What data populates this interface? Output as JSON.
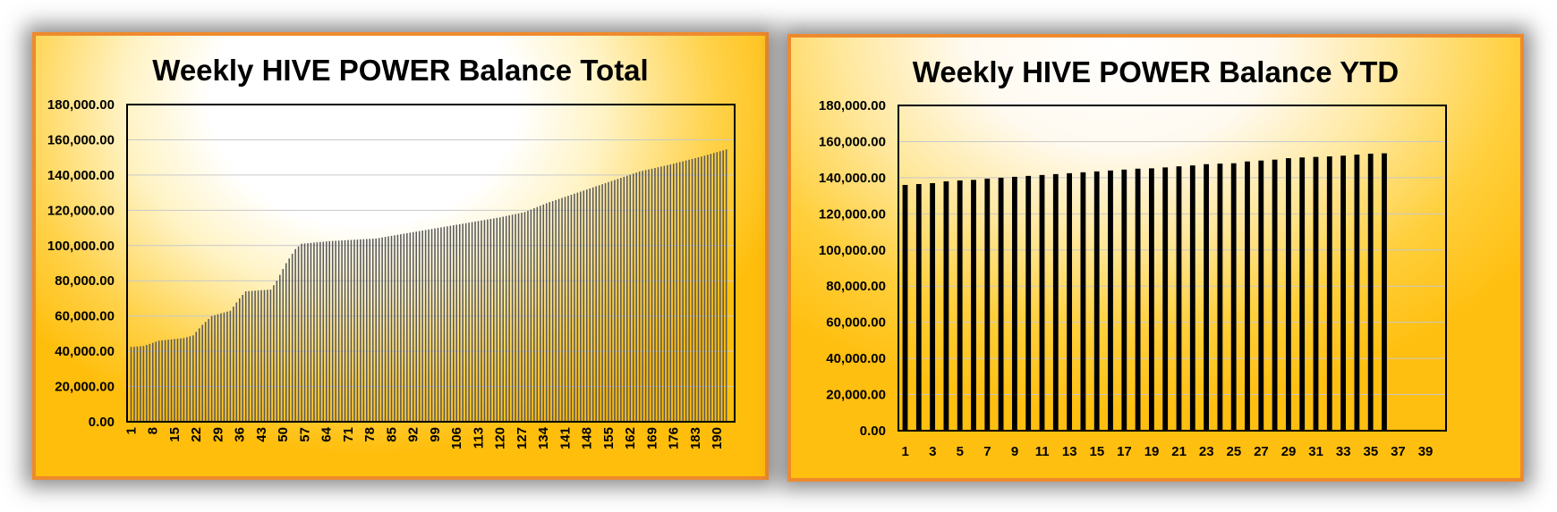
{
  "colors": {
    "border": "#ef8a2c",
    "bar_left": "#6b6b6b",
    "bar_right": "#000000",
    "grid": "#c8c8c8",
    "background_edge": "#ffbe0c"
  },
  "chart_data": [
    {
      "type": "bar",
      "title": "Weekly HIVE POWER Balance Total",
      "xlabel": "",
      "ylabel": "",
      "ylim": [
        0,
        180000
      ],
      "y_ticks": [
        "0.00",
        "20,000.00",
        "40,000.00",
        "60,000.00",
        "80,000.00",
        "100,000.00",
        "120,000.00",
        "140,000.00",
        "160,000.00",
        "180,000.00"
      ],
      "x_tick_labels": [
        "1",
        "8",
        "15",
        "22",
        "29",
        "36",
        "43",
        "50",
        "57",
        "64",
        "71",
        "78",
        "85",
        "92",
        "99",
        "106",
        "113",
        "120",
        "127",
        "134",
        "141",
        "148",
        "155",
        "162",
        "169",
        "176",
        "183",
        "190"
      ],
      "n_bars": 193,
      "values_keypoints": [
        [
          1,
          42500
        ],
        [
          5,
          43000
        ],
        [
          10,
          46000
        ],
        [
          18,
          47500
        ],
        [
          21,
          49000
        ],
        [
          24,
          55000
        ],
        [
          27,
          60000
        ],
        [
          33,
          63000
        ],
        [
          36,
          70000
        ],
        [
          38,
          74000
        ],
        [
          46,
          75000
        ],
        [
          48,
          80000
        ],
        [
          51,
          90000
        ],
        [
          54,
          98000
        ],
        [
          56,
          101000
        ],
        [
          65,
          102500
        ],
        [
          80,
          104000
        ],
        [
          90,
          107000
        ],
        [
          100,
          110000
        ],
        [
          110,
          113000
        ],
        [
          120,
          116000
        ],
        [
          128,
          119000
        ],
        [
          135,
          124000
        ],
        [
          145,
          130000
        ],
        [
          155,
          136000
        ],
        [
          165,
          142000
        ],
        [
          175,
          146000
        ],
        [
          185,
          150500
        ],
        [
          193,
          154500
        ]
      ],
      "grid": true
    },
    {
      "type": "bar",
      "title": "Weekly HIVE POWER Balance YTD",
      "xlabel": "",
      "ylabel": "",
      "ylim": [
        0,
        180000
      ],
      "y_ticks": [
        "0.00",
        "20,000.00",
        "40,000.00",
        "60,000.00",
        "80,000.00",
        "100,000.00",
        "120,000.00",
        "140,000.00",
        "160,000.00",
        "180,000.00"
      ],
      "x_tick_labels": [
        "1",
        "3",
        "5",
        "7",
        "9",
        "11",
        "13",
        "15",
        "17",
        "19",
        "21",
        "23",
        "25",
        "27",
        "29",
        "31",
        "33",
        "35",
        "37",
        "39"
      ],
      "categories": [
        1,
        2,
        3,
        4,
        5,
        6,
        7,
        8,
        9,
        10,
        11,
        12,
        13,
        14,
        15,
        16,
        17,
        18,
        19,
        20,
        21,
        22,
        23,
        24,
        25,
        26,
        27,
        28,
        29,
        30,
        31,
        32,
        33,
        34,
        35,
        36,
        37,
        38,
        39,
        40
      ],
      "values": [
        136000,
        136500,
        137000,
        138000,
        138500,
        138800,
        139500,
        140000,
        140500,
        141000,
        141500,
        142000,
        142500,
        143000,
        143500,
        144000,
        144500,
        145000,
        145200,
        145700,
        146300,
        146800,
        147500,
        147800,
        148000,
        149000,
        149500,
        150000,
        150800,
        151200,
        151500,
        151800,
        152200,
        152800,
        153300,
        153500,
        null,
        null,
        null,
        null
      ],
      "grid": true
    }
  ]
}
